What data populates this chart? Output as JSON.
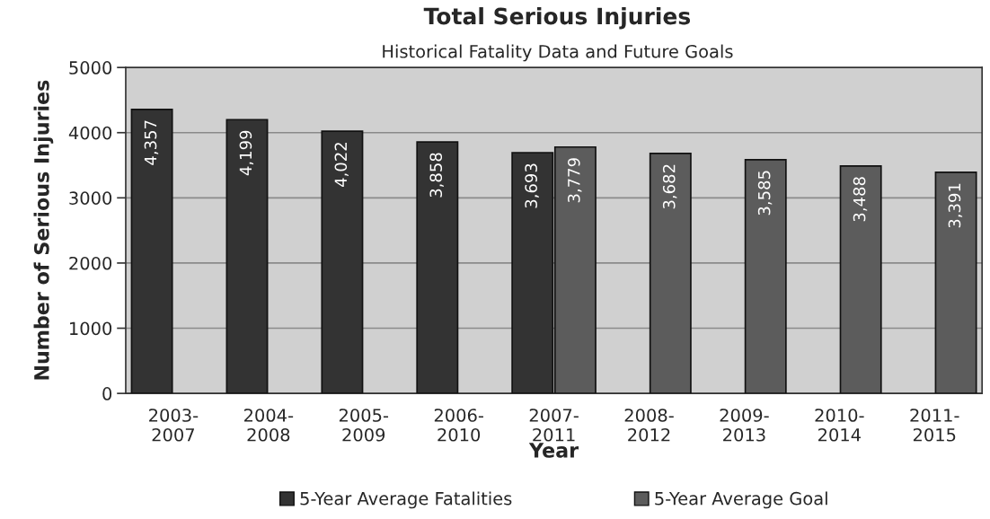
{
  "chart_data": {
    "type": "bar",
    "title": "Total Serious Injuries",
    "subtitle": "Historical Fatality Data and Future Goals",
    "xlabel": "Year",
    "ylabel": "Number of Serious Injuries",
    "categories": [
      "2003-2007",
      "2004-2008",
      "2005-2009",
      "2006-2010",
      "2007-2011",
      "2008-2012",
      "2009-2013",
      "2010-2014",
      "2011-2015"
    ],
    "series": [
      {
        "name": "5-Year Average Fatalities",
        "color": "#333333",
        "values": [
          4357,
          4199,
          4022,
          3858,
          3693,
          null,
          null,
          null,
          null
        ],
        "value_labels": [
          "4,357",
          "4,199",
          "4,022",
          "3,858",
          "3,693",
          null,
          null,
          null,
          null
        ]
      },
      {
        "name": "5-Year Average Goal",
        "color": "#5c5c5c",
        "values": [
          null,
          null,
          null,
          null,
          3779,
          3682,
          3585,
          3488,
          3391
        ],
        "value_labels": [
          null,
          null,
          null,
          null,
          "3,779",
          "3,682",
          "3,585",
          "3,488",
          "3,391"
        ]
      }
    ],
    "ylim": [
      0,
      5000
    ],
    "yticks": [
      0,
      1000,
      2000,
      3000,
      4000,
      5000
    ],
    "grid": "y",
    "legend": "bottom"
  }
}
